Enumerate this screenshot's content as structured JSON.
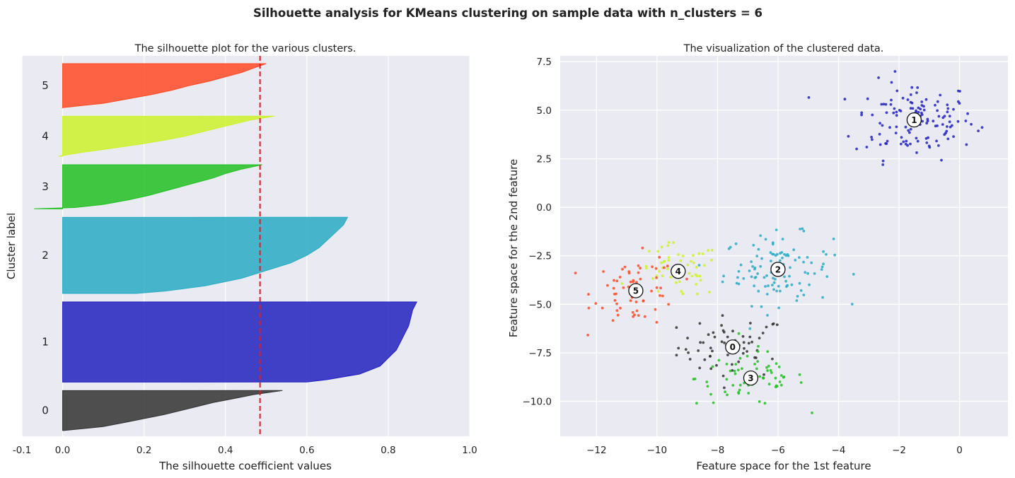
{
  "suptitle": "Silhouette analysis for KMeans clustering on sample data with n_clusters = 6",
  "chart_data": [
    {
      "type": "area",
      "title": "The silhouette plot for the various clusters.",
      "xlabel": "The silhouette coefficient values",
      "ylabel": "Cluster label",
      "xlim": [
        -0.1,
        1.0
      ],
      "xticks": [
        "-0.1",
        "0.0",
        "0.2",
        "0.4",
        "0.6",
        "0.8",
        "1.0"
      ],
      "xtick_values": [
        -0.1,
        0.0,
        0.2,
        0.4,
        0.6,
        0.8,
        1.0
      ],
      "grid": true,
      "average_silhouette": 0.485,
      "average_line_color": "#e41a1c",
      "clusters": [
        {
          "label": "0",
          "color": "#333333",
          "min": 0.0,
          "max": 0.54,
          "size": 100,
          "profile": [
            [
              0,
              0.54
            ],
            [
              0.1,
              0.47
            ],
            [
              0.2,
              0.42
            ],
            [
              0.3,
              0.37
            ],
            [
              0.4,
              0.33
            ],
            [
              0.5,
              0.29
            ],
            [
              0.6,
              0.25
            ],
            [
              0.7,
              0.2
            ],
            [
              0.8,
              0.15
            ],
            [
              0.9,
              0.1
            ],
            [
              1.0,
              0.0
            ]
          ]
        },
        {
          "label": "1",
          "color": "#2222c0",
          "min": 0.0,
          "max": 0.87,
          "size": 200,
          "profile": [
            [
              0,
              0.87
            ],
            [
              0.1,
              0.86
            ],
            [
              0.2,
              0.855
            ],
            [
              0.3,
              0.85
            ],
            [
              0.4,
              0.84
            ],
            [
              0.5,
              0.83
            ],
            [
              0.6,
              0.82
            ],
            [
              0.7,
              0.8
            ],
            [
              0.8,
              0.78
            ],
            [
              0.9,
              0.73
            ],
            [
              0.97,
              0.65
            ],
            [
              1.0,
              0.6
            ]
          ]
        },
        {
          "label": "2",
          "color": "#29acc4",
          "min": 0.0,
          "max": 0.7,
          "size": 190,
          "profile": [
            [
              0,
              0.7
            ],
            [
              0.1,
              0.69
            ],
            [
              0.2,
              0.67
            ],
            [
              0.3,
              0.65
            ],
            [
              0.4,
              0.63
            ],
            [
              0.5,
              0.6
            ],
            [
              0.6,
              0.56
            ],
            [
              0.7,
              0.5
            ],
            [
              0.8,
              0.44
            ],
            [
              0.9,
              0.35
            ],
            [
              0.97,
              0.25
            ],
            [
              1.0,
              0.18
            ]
          ]
        },
        {
          "label": "3",
          "color": "#22c022",
          "min": -0.07,
          "max": 0.49,
          "size": 110,
          "profile": [
            [
              0,
              0.49
            ],
            [
              0.1,
              0.44
            ],
            [
              0.2,
              0.4
            ],
            [
              0.3,
              0.37
            ],
            [
              0.4,
              0.33
            ],
            [
              0.5,
              0.29
            ],
            [
              0.6,
              0.25
            ],
            [
              0.7,
              0.21
            ],
            [
              0.8,
              0.16
            ],
            [
              0.9,
              0.1
            ],
            [
              0.97,
              0.03
            ],
            [
              1.0,
              -0.07
            ]
          ]
        },
        {
          "label": "4",
          "color": "#ccf22c",
          "min": -0.01,
          "max": 0.52,
          "size": 100,
          "profile": [
            [
              0,
              0.52
            ],
            [
              0.1,
              0.46
            ],
            [
              0.2,
              0.42
            ],
            [
              0.3,
              0.38
            ],
            [
              0.4,
              0.34
            ],
            [
              0.5,
              0.3
            ],
            [
              0.6,
              0.25
            ],
            [
              0.7,
              0.19
            ],
            [
              0.8,
              0.12
            ],
            [
              0.9,
              0.05
            ],
            [
              1.0,
              -0.01
            ]
          ]
        },
        {
          "label": "5",
          "color": "#ff4a24",
          "min": 0.0,
          "max": 0.5,
          "size": 110,
          "profile": [
            [
              0,
              0.5
            ],
            [
              0.1,
              0.47
            ],
            [
              0.2,
              0.44
            ],
            [
              0.3,
              0.4
            ],
            [
              0.4,
              0.36
            ],
            [
              0.5,
              0.31
            ],
            [
              0.6,
              0.27
            ],
            [
              0.7,
              0.22
            ],
            [
              0.8,
              0.16
            ],
            [
              0.9,
              0.1
            ],
            [
              1.0,
              0.0
            ]
          ]
        }
      ]
    },
    {
      "type": "scatter",
      "title": "The visualization of the clustered data.",
      "xlabel": "Feature space for the 1st feature",
      "ylabel": "Feature space for the 2nd feature",
      "xlim": [
        -13.2,
        1.6
      ],
      "ylim": [
        -11.8,
        7.8
      ],
      "xticks": [
        "−12",
        "−10",
        "−8",
        "−6",
        "−4",
        "−2",
        "0"
      ],
      "xtick_values": [
        -12,
        -10,
        -8,
        -6,
        -4,
        -2,
        0
      ],
      "yticks": [
        "7.5",
        "5.0",
        "2.5",
        "0.0",
        "−2.5",
        "−5.0",
        "−7.5",
        "−10.0"
      ],
      "ytick_values": [
        7.5,
        5.0,
        2.5,
        0.0,
        -2.5,
        -5.0,
        -7.5,
        -10.0
      ],
      "grid": true,
      "clusters": [
        {
          "label": "0",
          "color": "#333333",
          "center": [
            -7.5,
            -7.2
          ],
          "spread": [
            0.9,
            0.8
          ],
          "count": 60
        },
        {
          "label": "1",
          "color": "#2222c0",
          "center": [
            -1.5,
            4.5
          ],
          "spread": [
            1.0,
            1.0
          ],
          "count": 130
        },
        {
          "label": "2",
          "color": "#29acc4",
          "center": [
            -6.0,
            -3.2
          ],
          "spread": [
            0.9,
            0.9
          ],
          "count": 110
        },
        {
          "label": "3",
          "color": "#22c022",
          "center": [
            -6.9,
            -8.8
          ],
          "spread": [
            0.9,
            0.7
          ],
          "count": 70
        },
        {
          "label": "4",
          "color": "#ccf22c",
          "center": [
            -9.3,
            -3.3
          ],
          "spread": [
            0.7,
            0.7
          ],
          "count": 55
        },
        {
          "label": "5",
          "color": "#ff4a24",
          "center": [
            -10.7,
            -4.3
          ],
          "spread": [
            0.7,
            0.9
          ],
          "count": 65
        }
      ]
    }
  ]
}
